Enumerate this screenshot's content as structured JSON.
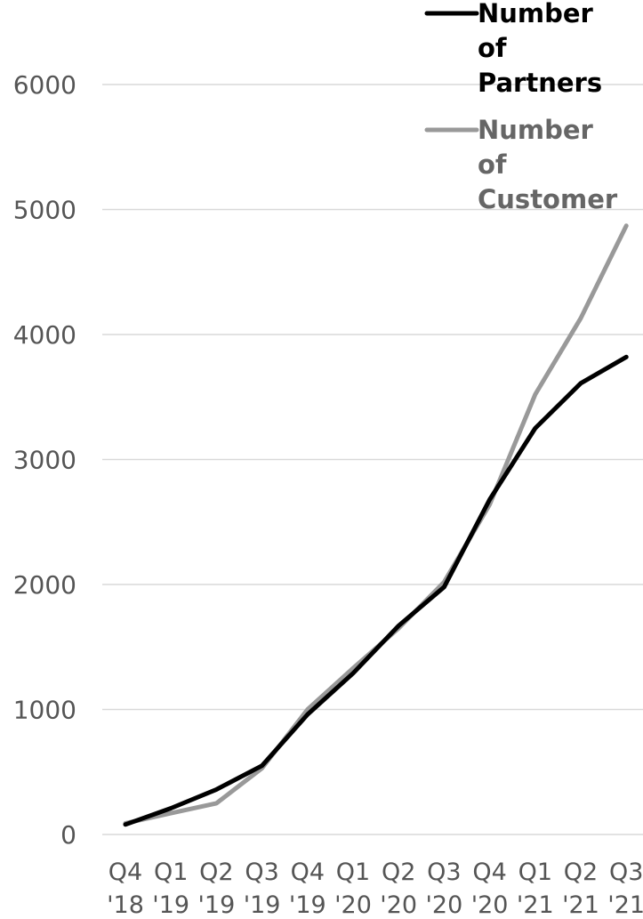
{
  "chart_data": {
    "type": "line",
    "categories": [
      [
        "Q4",
        "'18"
      ],
      [
        "Q1",
        "'19"
      ],
      [
        "Q2",
        "'19"
      ],
      [
        "Q3",
        "'19"
      ],
      [
        "Q4",
        "'19"
      ],
      [
        "Q1",
        "'20"
      ],
      [
        "Q2",
        "'20"
      ],
      [
        "Q3",
        "'20"
      ],
      [
        "Q4",
        "'20"
      ],
      [
        "Q1",
        "'21"
      ],
      [
        "Q2",
        "'21"
      ],
      [
        "Q3",
        "'21"
      ]
    ],
    "series": [
      {
        "name": [
          "Number",
          "of",
          "Partners"
        ],
        "color": "#000000",
        "values": [
          80,
          210,
          360,
          550,
          960,
          1290,
          1670,
          1980,
          2680,
          3250,
          3610,
          3820
        ]
      },
      {
        "name": [
          "Number",
          "of",
          "Customer"
        ],
        "color": "#999999",
        "text_color": "#666666",
        "values": [
          90,
          170,
          250,
          530,
          1000,
          1330,
          1650,
          2020,
          2640,
          3520,
          4130,
          4870
        ]
      }
    ],
    "ylim": [
      0,
      6000
    ],
    "yticks": [
      "0",
      "1000",
      "2000",
      "3000",
      "4000",
      "5000",
      "6000"
    ],
    "grid": true,
    "legend": "top-right"
  }
}
